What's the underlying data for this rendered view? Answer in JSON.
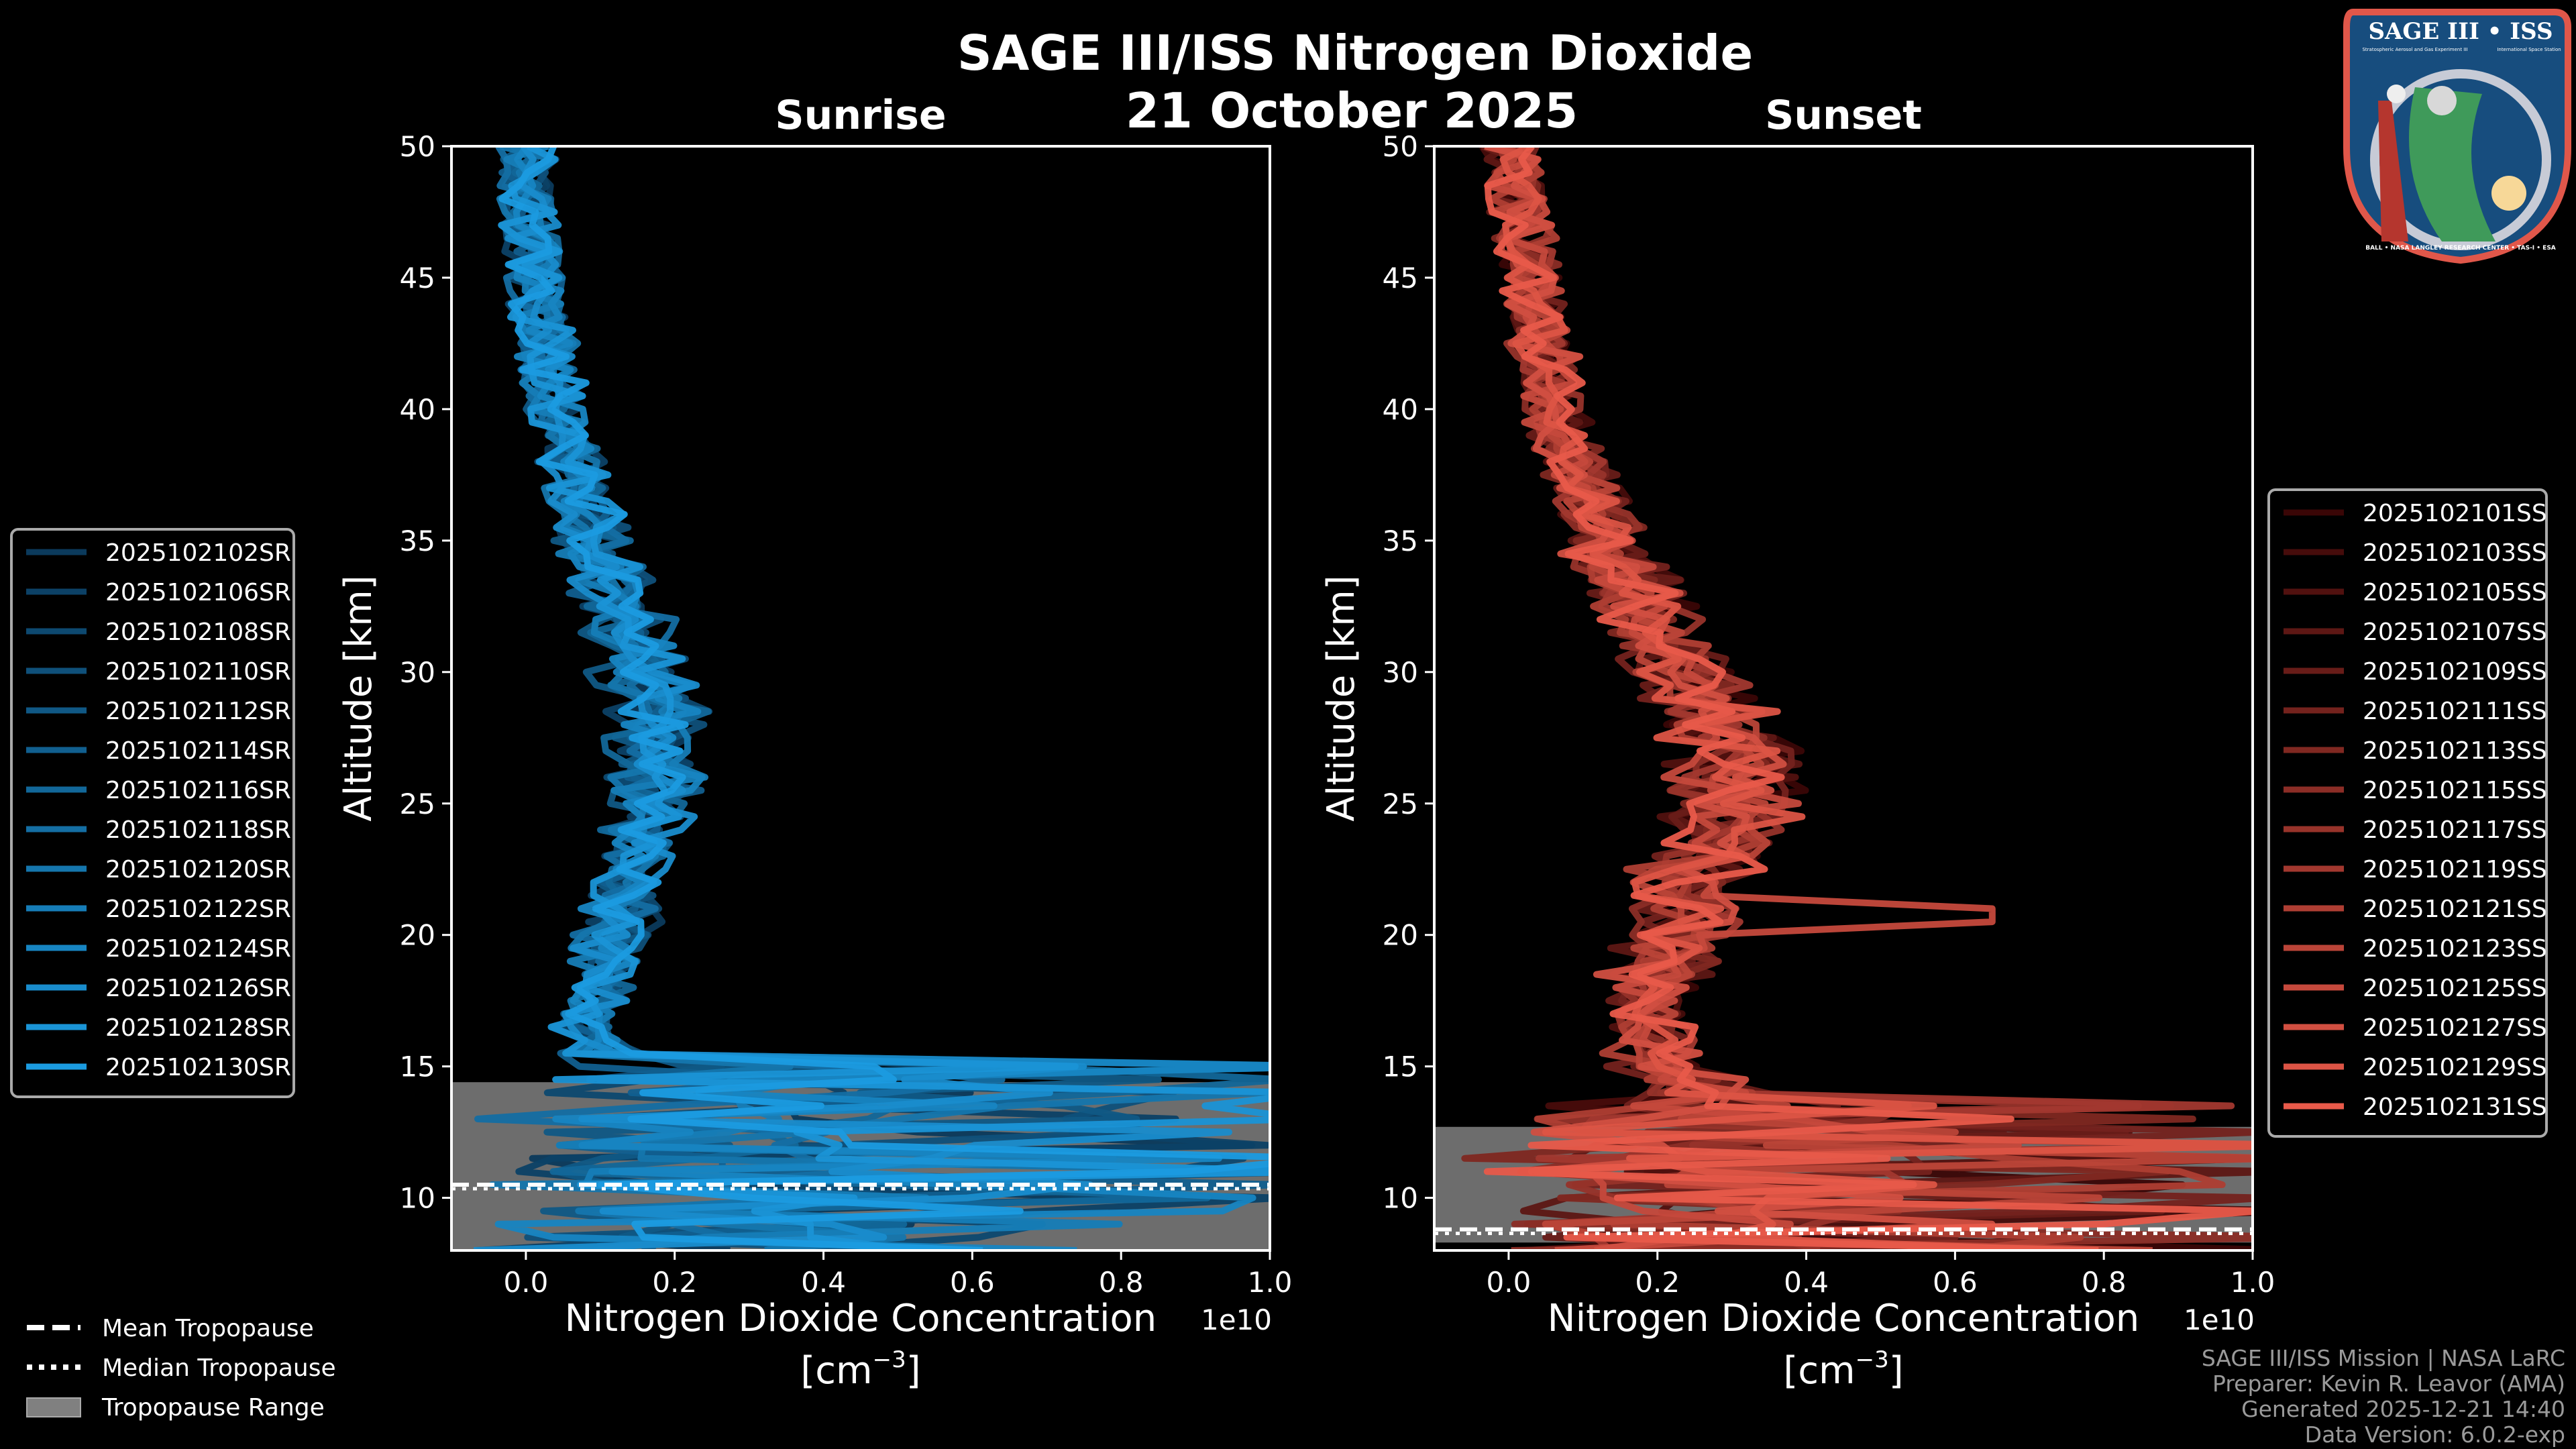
{
  "title": "SAGE III/ISS Nitrogen Dioxide",
  "date": "21 October 2025",
  "colors": {
    "sunrise_dark": "#0b3a5c",
    "sunrise_light": "#1b9be0",
    "sunset_dark": "#3a0606",
    "sunset_light": "#e85a4a",
    "tropopause_range": "#808080",
    "background": "#000000"
  },
  "chart_data": [
    {
      "type": "line",
      "title": "Sunrise",
      "xlabel": "Nitrogen Dioxide Concentration",
      "xlabel_units": "[cm",
      "xlabel_exp": "−3",
      "xlabel_units_close": "]",
      "ylabel": "Altitude [km]",
      "x_offset_label": "1e10",
      "xlim": [
        -0.1,
        1.0
      ],
      "ylim": [
        8,
        50
      ],
      "xticks": [
        "0.0",
        "0.2",
        "0.4",
        "0.6",
        "0.8",
        "1.0"
      ],
      "yticks": [
        "10",
        "15",
        "20",
        "25",
        "30",
        "35",
        "40",
        "45",
        "50"
      ],
      "xtick_values": [
        0,
        0.2,
        0.4,
        0.6,
        0.8,
        1.0
      ],
      "ytick_values": [
        10,
        15,
        20,
        25,
        30,
        35,
        40,
        45,
        50
      ],
      "legend_placement": "left-outside",
      "mean_profile": {
        "altitude": [
          50,
          45,
          40,
          35,
          30,
          27,
          25,
          22,
          20,
          17,
          15.5,
          14.5
        ],
        "value": [
          0.0,
          0.01,
          0.04,
          0.09,
          0.16,
          0.18,
          0.17,
          0.14,
          0.12,
          0.09,
          0.1,
          0.2
        ]
      },
      "tropopause": {
        "mean": 10.5,
        "median": 10.5,
        "range": [
          8.0,
          14.4
        ]
      },
      "series": [
        {
          "name": "2025102102SR"
        },
        {
          "name": "2025102106SR"
        },
        {
          "name": "2025102108SR"
        },
        {
          "name": "2025102110SR"
        },
        {
          "name": "2025102112SR"
        },
        {
          "name": "2025102114SR"
        },
        {
          "name": "2025102116SR"
        },
        {
          "name": "2025102118SR"
        },
        {
          "name": "2025102120SR"
        },
        {
          "name": "2025102122SR"
        },
        {
          "name": "2025102124SR"
        },
        {
          "name": "2025102126SR"
        },
        {
          "name": "2025102128SR"
        },
        {
          "name": "2025102130SR"
        }
      ]
    },
    {
      "type": "line",
      "title": "Sunset",
      "xlabel": "Nitrogen Dioxide Concentration",
      "xlabel_units": "[cm",
      "xlabel_exp": "−3",
      "xlabel_units_close": "]",
      "ylabel": "Altitude [km]",
      "x_offset_label": "1e10",
      "xlim": [
        -0.1,
        1.0
      ],
      "ylim": [
        8,
        50
      ],
      "xticks": [
        "0.0",
        "0.2",
        "0.4",
        "0.6",
        "0.8",
        "1.0"
      ],
      "yticks": [
        "10",
        "15",
        "20",
        "25",
        "30",
        "35",
        "40",
        "45",
        "50"
      ],
      "xtick_values": [
        0,
        0.2,
        0.4,
        0.6,
        0.8,
        1.0
      ],
      "ytick_values": [
        10,
        15,
        20,
        25,
        30,
        35,
        40,
        45,
        50
      ],
      "legend_placement": "right-outside",
      "mean_profile": {
        "altitude": [
          50,
          45,
          40,
          35,
          30,
          27,
          25,
          22,
          20,
          17,
          15,
          13
        ],
        "value": [
          0.0,
          0.03,
          0.06,
          0.13,
          0.23,
          0.3,
          0.3,
          0.25,
          0.22,
          0.18,
          0.2,
          0.35
        ]
      },
      "tropopause": {
        "mean": 8.8,
        "median": 8.8,
        "range": [
          8.3,
          12.7
        ]
      },
      "series": [
        {
          "name": "2025102101SS"
        },
        {
          "name": "2025102103SS"
        },
        {
          "name": "2025102105SS"
        },
        {
          "name": "2025102107SS"
        },
        {
          "name": "2025102109SS"
        },
        {
          "name": "2025102111SS"
        },
        {
          "name": "2025102113SS"
        },
        {
          "name": "2025102115SS"
        },
        {
          "name": "2025102117SS"
        },
        {
          "name": "2025102119SS"
        },
        {
          "name": "2025102121SS"
        },
        {
          "name": "2025102123SS"
        },
        {
          "name": "2025102125SS"
        },
        {
          "name": "2025102127SS"
        },
        {
          "name": "2025102129SS"
        },
        {
          "name": "2025102131SS"
        }
      ]
    }
  ],
  "tropopause_legend": {
    "mean": "Mean Tropopause",
    "median": "Median Tropopause",
    "range": "Tropopause Range"
  },
  "footer": [
    "SAGE III/ISS Mission | NASA LaRC",
    "Preparer: Kevin R. Leavor (AMA)",
    "Generated 2025-12-21 14:40",
    "Data Version: 6.0.2-exp"
  ],
  "logo": {
    "title": "SAGE III • ISS",
    "left_caption": "Stratospheric Aerosol and Gas Experiment III",
    "right_caption": "International Space Station",
    "ring": "BALL • NASA LANGLEY RESEARCH CENTER • TAS-I • ESA"
  }
}
